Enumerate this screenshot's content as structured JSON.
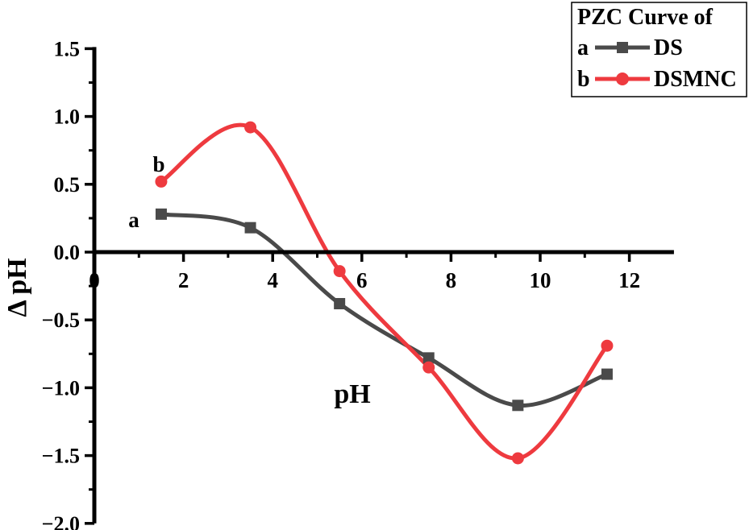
{
  "chart_data": {
    "type": "line",
    "xlabel": "pH",
    "ylabel": "Δ pH",
    "xlim": [
      0,
      13
    ],
    "ylim": [
      -2.0,
      1.5
    ],
    "x_ticks": [
      0,
      2,
      4,
      6,
      8,
      10,
      12
    ],
    "x_tick_labels": [
      "0",
      "2",
      "4",
      "6",
      "8",
      "10",
      "12"
    ],
    "y_ticks": [
      1.5,
      1.0,
      0.5,
      0.0,
      -0.5,
      -1.0,
      -1.5,
      -2.0
    ],
    "y_tick_labels": [
      "1.5",
      "1.0",
      "0.5",
      "0.0",
      "−0.5",
      "−1.0",
      "−1.5",
      "−2.0"
    ],
    "grid": false,
    "legend": {
      "title": "PZC Curve of",
      "position": "top-right",
      "entries": [
        {
          "tag": "a",
          "label": "DS"
        },
        {
          "tag": "b",
          "label": "DSMNC"
        }
      ]
    },
    "series": [
      {
        "name": "DS",
        "tag": "a",
        "color": "#4a4a4a",
        "marker": "square",
        "x": [
          1.5,
          3.5,
          5.5,
          7.5,
          9.5,
          11.5
        ],
        "y": [
          0.28,
          0.18,
          -0.38,
          -0.78,
          -1.13,
          -0.9
        ]
      },
      {
        "name": "DSMNC",
        "tag": "b",
        "color": "#ee3a3f",
        "marker": "circle",
        "x": [
          1.5,
          3.5,
          5.5,
          7.5,
          9.5,
          11.5
        ],
        "y": [
          0.52,
          0.92,
          -0.14,
          -0.85,
          -1.52,
          -0.69
        ]
      }
    ]
  }
}
